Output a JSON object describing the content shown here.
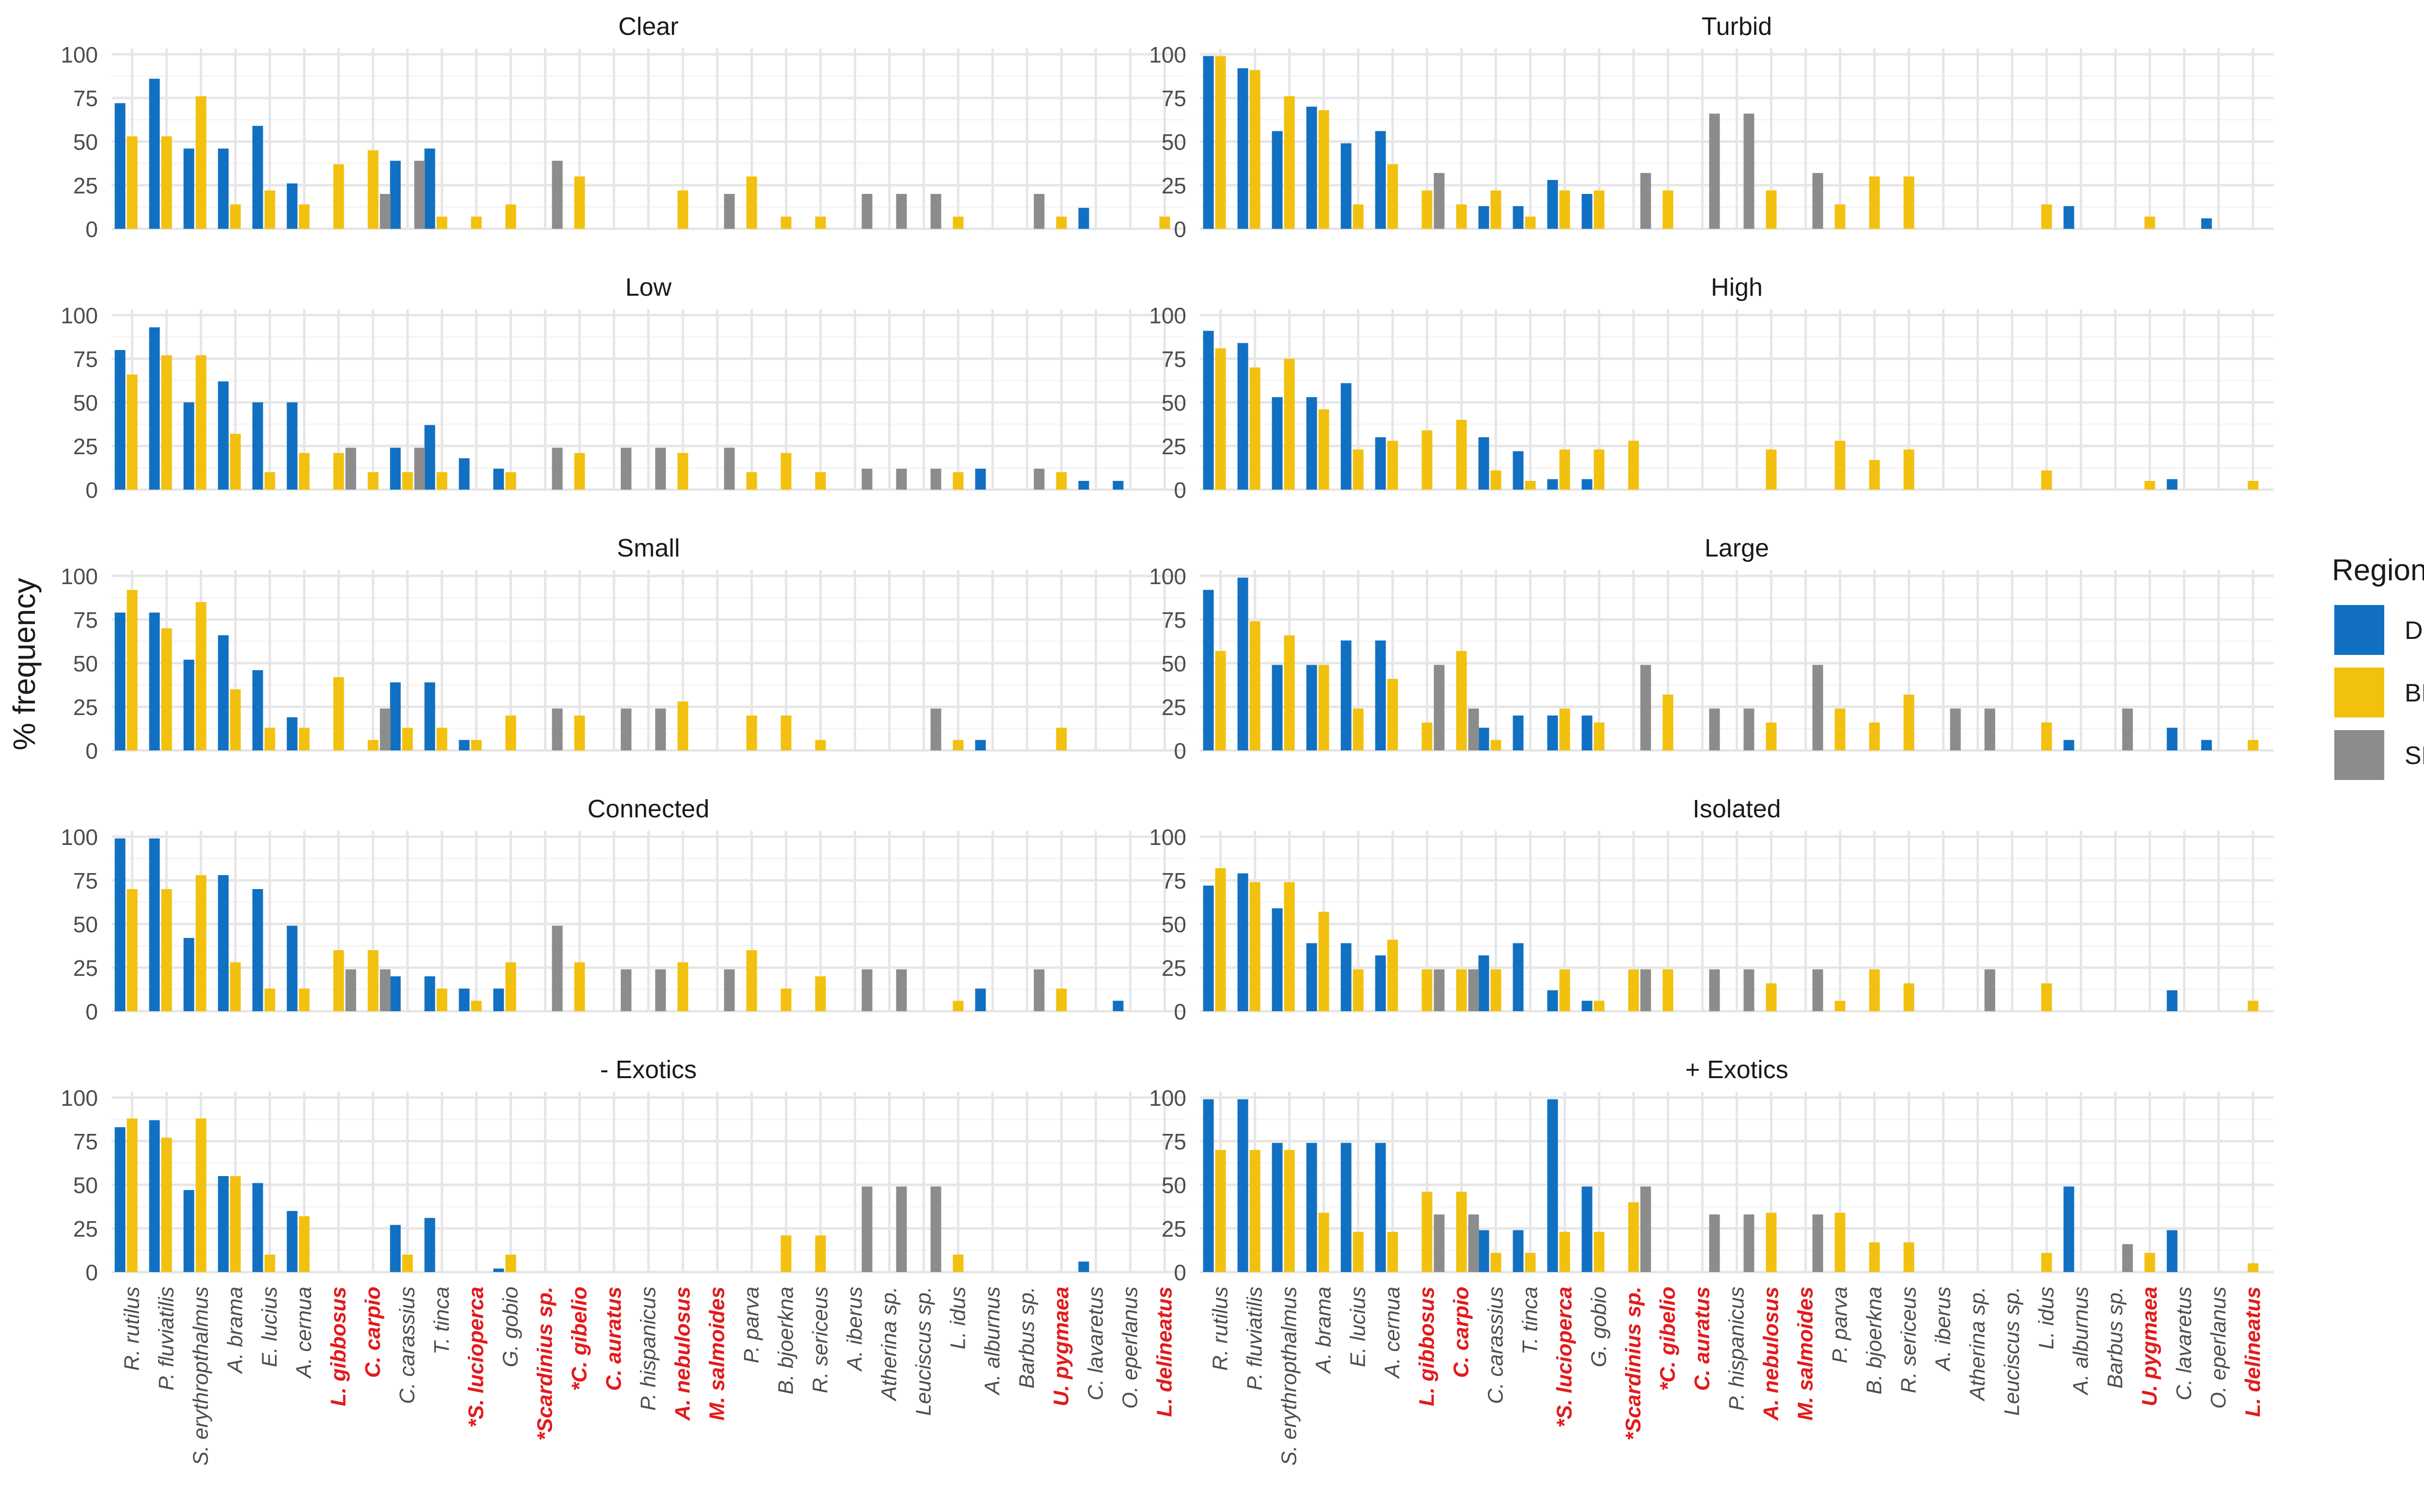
{
  "chart_data": {
    "type": "bar",
    "ylabel": "% frequency",
    "ylim": [
      0,
      100
    ],
    "yticks": [
      0,
      25,
      50,
      75,
      100
    ],
    "grid": true,
    "legend": {
      "title": "Region",
      "position": "right",
      "entries": [
        {
          "name": "DK",
          "color": "#1170C2"
        },
        {
          "name": "BNL",
          "color": "#F2C10F"
        },
        {
          "name": "SP",
          "color": "#8C8C8C"
        }
      ]
    },
    "exotic_label_color": "#E31A1C",
    "normal_label_color": "#4D4D4D",
    "series_names": [
      "DK",
      "BNL",
      "SP"
    ],
    "categories": [
      {
        "name": "R. rutilus",
        "exotic": false
      },
      {
        "name": "P. fluviatilis",
        "exotic": false
      },
      {
        "name": "S. erythropthalmus",
        "exotic": false
      },
      {
        "name": "A. brama",
        "exotic": false
      },
      {
        "name": "E. lucius",
        "exotic": false
      },
      {
        "name": "A. cernua",
        "exotic": false
      },
      {
        "name": "L. gibbosus",
        "exotic": true
      },
      {
        "name": "C. carpio",
        "exotic": true
      },
      {
        "name": "C. carassius",
        "exotic": false
      },
      {
        "name": "T. tinca",
        "exotic": false
      },
      {
        "name": "*S. lucioperca",
        "exotic": true
      },
      {
        "name": "G. gobio",
        "exotic": false
      },
      {
        "name": "*Scardinius sp.",
        "exotic": true
      },
      {
        "name": "*C. gibelio",
        "exotic": true
      },
      {
        "name": "C. auratus",
        "exotic": true
      },
      {
        "name": "P. hispanicus",
        "exotic": false
      },
      {
        "name": "A. nebulosus",
        "exotic": true
      },
      {
        "name": "M. salmoides",
        "exotic": true
      },
      {
        "name": "P. parva",
        "exotic": false
      },
      {
        "name": "B. bjoerkna",
        "exotic": false
      },
      {
        "name": "R. sericeus",
        "exotic": false
      },
      {
        "name": "A. iberus",
        "exotic": false
      },
      {
        "name": "Atherina sp.",
        "exotic": false
      },
      {
        "name": "Leuciscus sp.",
        "exotic": false
      },
      {
        "name": "L. idus",
        "exotic": false
      },
      {
        "name": "A. alburnus",
        "exotic": false
      },
      {
        "name": "Barbus sp.",
        "exotic": false
      },
      {
        "name": "U. pygmaea",
        "exotic": true
      },
      {
        "name": "C. lavaretus",
        "exotic": false
      },
      {
        "name": "O. eperlanus",
        "exotic": false
      },
      {
        "name": "L. delineatus",
        "exotic": true
      }
    ],
    "panels": [
      {
        "title": "Clear",
        "DK": [
          72,
          86,
          46,
          46,
          59,
          26,
          0,
          0,
          39,
          46,
          0,
          0,
          0,
          0,
          0,
          0,
          0,
          0,
          0,
          0,
          0,
          0,
          0,
          0,
          0,
          0,
          0,
          0,
          12,
          0,
          0
        ],
        "BNL": [
          53,
          53,
          76,
          14,
          22,
          14,
          37,
          45,
          0,
          7,
          7,
          14,
          0,
          30,
          0,
          0,
          22,
          0,
          30,
          7,
          7,
          0,
          0,
          0,
          7,
          0,
          0,
          7,
          0,
          0,
          7
        ],
        "SP": [
          0,
          0,
          0,
          0,
          0,
          0,
          0,
          20,
          39,
          0,
          0,
          0,
          39,
          0,
          0,
          0,
          0,
          20,
          0,
          0,
          0,
          20,
          20,
          20,
          0,
          0,
          20,
          0,
          0,
          0,
          0
        ]
      },
      {
        "title": "Turbid",
        "DK": [
          99,
          92,
          56,
          70,
          49,
          56,
          0,
          0,
          13,
          13,
          28,
          20,
          0,
          0,
          0,
          0,
          0,
          0,
          0,
          0,
          0,
          0,
          0,
          0,
          0,
          13,
          0,
          0,
          0,
          6,
          0
        ],
        "BNL": [
          99,
          91,
          76,
          68,
          14,
          37,
          22,
          14,
          22,
          7,
          22,
          22,
          0,
          22,
          0,
          0,
          22,
          0,
          14,
          30,
          30,
          0,
          0,
          0,
          14,
          0,
          0,
          7,
          0,
          0,
          0
        ],
        "SP": [
          0,
          0,
          0,
          0,
          0,
          0,
          32,
          0,
          0,
          0,
          0,
          0,
          32,
          0,
          66,
          66,
          0,
          32,
          0,
          0,
          0,
          0,
          0,
          0,
          0,
          0,
          0,
          0,
          0,
          0,
          0
        ]
      },
      {
        "title": "Low",
        "DK": [
          80,
          93,
          50,
          62,
          50,
          50,
          0,
          0,
          24,
          37,
          18,
          12,
          0,
          0,
          0,
          0,
          0,
          0,
          0,
          0,
          0,
          0,
          0,
          0,
          0,
          12,
          0,
          0,
          5,
          5,
          0
        ],
        "BNL": [
          66,
          77,
          77,
          32,
          10,
          21,
          21,
          10,
          10,
          10,
          0,
          10,
          0,
          21,
          0,
          0,
          21,
          0,
          10,
          21,
          10,
          0,
          0,
          0,
          10,
          0,
          0,
          10,
          0,
          0,
          0
        ],
        "SP": [
          0,
          0,
          0,
          0,
          0,
          0,
          24,
          0,
          24,
          0,
          0,
          0,
          24,
          0,
          24,
          24,
          0,
          24,
          0,
          0,
          0,
          12,
          12,
          12,
          0,
          0,
          12,
          0,
          0,
          0,
          0
        ]
      },
      {
        "title": "High",
        "DK": [
          91,
          84,
          53,
          53,
          61,
          30,
          0,
          0,
          30,
          22,
          6,
          6,
          0,
          0,
          0,
          0,
          0,
          0,
          0,
          0,
          0,
          0,
          0,
          0,
          0,
          0,
          0,
          0,
          6,
          0,
          0
        ],
        "BNL": [
          81,
          70,
          75,
          46,
          23,
          28,
          34,
          40,
          11,
          5,
          23,
          23,
          28,
          0,
          0,
          0,
          23,
          0,
          28,
          17,
          23,
          0,
          0,
          0,
          11,
          0,
          0,
          5,
          0,
          0,
          5
        ],
        "SP": [
          0,
          0,
          0,
          0,
          0,
          0,
          0,
          0,
          0,
          0,
          0,
          0,
          0,
          0,
          0,
          0,
          0,
          0,
          0,
          0,
          0,
          0,
          0,
          0,
          0,
          0,
          0,
          0,
          0,
          0,
          0
        ]
      },
      {
        "title": "Small",
        "DK": [
          79,
          79,
          52,
          66,
          46,
          19,
          0,
          0,
          39,
          39,
          6,
          0,
          0,
          0,
          0,
          0,
          0,
          0,
          0,
          0,
          0,
          0,
          0,
          0,
          0,
          6,
          0,
          0,
          0,
          0,
          0
        ],
        "BNL": [
          92,
          70,
          85,
          35,
          13,
          13,
          42,
          6,
          13,
          13,
          6,
          20,
          0,
          20,
          0,
          0,
          28,
          0,
          20,
          20,
          6,
          0,
          0,
          0,
          6,
          0,
          0,
          13,
          0,
          0,
          0
        ],
        "SP": [
          0,
          0,
          0,
          0,
          0,
          0,
          0,
          24,
          0,
          0,
          0,
          0,
          24,
          0,
          24,
          24,
          0,
          0,
          0,
          0,
          0,
          0,
          0,
          24,
          0,
          0,
          0,
          0,
          0,
          0,
          0
        ]
      },
      {
        "title": "Large",
        "DK": [
          92,
          99,
          49,
          49,
          63,
          63,
          0,
          0,
          13,
          20,
          20,
          20,
          0,
          0,
          0,
          0,
          0,
          0,
          0,
          0,
          0,
          0,
          0,
          0,
          0,
          6,
          0,
          0,
          13,
          6,
          0
        ],
        "BNL": [
          57,
          74,
          66,
          49,
          24,
          41,
          16,
          57,
          6,
          0,
          24,
          16,
          0,
          32,
          0,
          0,
          16,
          0,
          24,
          16,
          32,
          0,
          0,
          0,
          16,
          0,
          0,
          0,
          0,
          0,
          6
        ],
        "SP": [
          0,
          0,
          0,
          0,
          0,
          0,
          49,
          24,
          0,
          0,
          0,
          0,
          49,
          0,
          24,
          24,
          0,
          49,
          0,
          0,
          0,
          24,
          24,
          0,
          0,
          0,
          24,
          0,
          0,
          0,
          0
        ]
      },
      {
        "title": "Connected",
        "DK": [
          99,
          99,
          42,
          78,
          70,
          49,
          0,
          0,
          20,
          20,
          13,
          13,
          0,
          0,
          0,
          0,
          0,
          0,
          0,
          0,
          0,
          0,
          0,
          0,
          0,
          13,
          0,
          0,
          0,
          6,
          0
        ],
        "BNL": [
          70,
          70,
          78,
          28,
          13,
          13,
          35,
          35,
          0,
          13,
          6,
          28,
          0,
          28,
          0,
          0,
          28,
          0,
          35,
          13,
          20,
          0,
          0,
          0,
          6,
          0,
          0,
          13,
          0,
          0,
          0
        ],
        "SP": [
          0,
          0,
          0,
          0,
          0,
          0,
          24,
          24,
          0,
          0,
          0,
          0,
          49,
          0,
          24,
          24,
          0,
          24,
          0,
          0,
          0,
          24,
          24,
          0,
          0,
          0,
          24,
          0,
          0,
          0,
          0
        ]
      },
      {
        "title": "Isolated",
        "DK": [
          72,
          79,
          59,
          39,
          39,
          32,
          0,
          0,
          32,
          39,
          12,
          6,
          0,
          0,
          0,
          0,
          0,
          0,
          0,
          0,
          0,
          0,
          0,
          0,
          0,
          0,
          0,
          0,
          12,
          0,
          0
        ],
        "BNL": [
          82,
          74,
          74,
          57,
          24,
          41,
          24,
          24,
          24,
          0,
          24,
          6,
          24,
          24,
          0,
          0,
          16,
          0,
          6,
          24,
          16,
          0,
          0,
          0,
          16,
          0,
          0,
          0,
          0,
          0,
          6
        ],
        "SP": [
          0,
          0,
          0,
          0,
          0,
          0,
          24,
          24,
          0,
          0,
          0,
          0,
          24,
          0,
          24,
          24,
          0,
          24,
          0,
          0,
          0,
          0,
          24,
          0,
          0,
          0,
          0,
          0,
          0,
          0,
          0
        ]
      },
      {
        "title": "- Exotics",
        "DK": [
          83,
          87,
          47,
          55,
          51,
          35,
          0,
          0,
          27,
          31,
          0,
          2,
          0,
          0,
          0,
          0,
          0,
          0,
          0,
          0,
          0,
          0,
          0,
          0,
          0,
          0,
          0,
          0,
          6,
          0,
          0
        ],
        "BNL": [
          88,
          77,
          88,
          55,
          10,
          32,
          0,
          0,
          10,
          0,
          0,
          10,
          0,
          0,
          0,
          0,
          0,
          0,
          0,
          21,
          21,
          0,
          0,
          0,
          10,
          0,
          0,
          0,
          0,
          0,
          0
        ],
        "SP": [
          0,
          0,
          0,
          0,
          0,
          0,
          0,
          0,
          0,
          0,
          0,
          0,
          0,
          0,
          0,
          0,
          0,
          0,
          0,
          0,
          0,
          49,
          49,
          49,
          0,
          0,
          0,
          0,
          0,
          0,
          0
        ]
      },
      {
        "title": "+ Exotics",
        "DK": [
          99,
          99,
          74,
          74,
          74,
          74,
          0,
          0,
          24,
          24,
          99,
          49,
          0,
          0,
          0,
          0,
          0,
          0,
          0,
          0,
          0,
          0,
          0,
          0,
          0,
          49,
          0,
          0,
          24,
          0,
          0
        ],
        "BNL": [
          70,
          70,
          70,
          34,
          23,
          23,
          46,
          46,
          11,
          11,
          23,
          23,
          40,
          0,
          0,
          0,
          34,
          0,
          34,
          17,
          17,
          0,
          0,
          0,
          11,
          0,
          0,
          11,
          0,
          0,
          5
        ],
        "SP": [
          0,
          0,
          0,
          0,
          0,
          0,
          33,
          33,
          0,
          0,
          0,
          0,
          49,
          0,
          33,
          33,
          0,
          33,
          0,
          0,
          0,
          0,
          0,
          0,
          0,
          0,
          16,
          0,
          0,
          0,
          0
        ]
      }
    ]
  }
}
